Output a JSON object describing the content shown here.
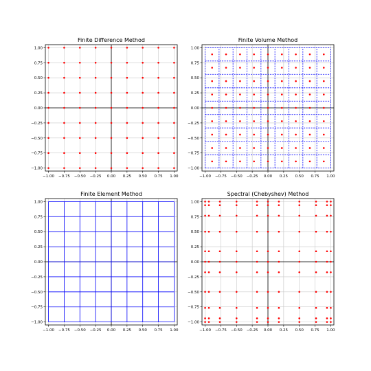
{
  "colors": {
    "point": "#ff0000",
    "mesh": "#0000ff",
    "grid": "#c8c8c8",
    "axis": "#000000",
    "frame": "#000000"
  },
  "chart_data": [
    {
      "type": "scatter",
      "title": "Finite Difference Method",
      "xlabel": "",
      "ylabel": "",
      "xlim": [
        -1.05,
        1.05
      ],
      "ylim": [
        -1.05,
        1.05
      ],
      "grid": true,
      "xticks": [
        -1.0,
        -0.75,
        -0.5,
        -0.25,
        0.0,
        0.25,
        0.5,
        0.75,
        1.0
      ],
      "yticks": [
        -1.0,
        -0.75,
        -0.5,
        -0.25,
        0.0,
        0.25,
        0.5,
        0.75,
        1.0
      ],
      "xtick_labels": [
        "−1.00",
        "−0.75",
        "−0.50",
        "−0.25",
        "0.00",
        "0.25",
        "0.50",
        "0.75",
        "1.00"
      ],
      "ytick_labels": [
        "−1.00",
        "−0.75",
        "−0.50",
        "−0.25",
        "0.00",
        "0.25",
        "0.50",
        "0.75",
        "1.00"
      ],
      "points_x": [
        -1.0,
        -0.75,
        -0.5,
        -0.25,
        0.0,
        0.25,
        0.5,
        0.75,
        1.0
      ],
      "points_y": [
        -1.0,
        -0.75,
        -0.5,
        -0.25,
        0.0,
        0.25,
        0.5,
        0.75,
        1.0
      ],
      "mesh_lines": []
    },
    {
      "type": "scatter",
      "title": "Finite Volume Method",
      "xlabel": "",
      "ylabel": "",
      "xlim": [
        -1.05,
        1.05
      ],
      "ylim": [
        -1.05,
        1.05
      ],
      "grid": true,
      "xticks": [
        -1.0,
        -0.75,
        -0.5,
        -0.25,
        0.0,
        0.25,
        0.5,
        0.75,
        1.0
      ],
      "yticks": [
        -1.0,
        -0.75,
        -0.5,
        -0.25,
        0.0,
        0.25,
        0.5,
        0.75,
        1.0
      ],
      "xtick_labels": [
        "−1.00",
        "−0.75",
        "−0.50",
        "−0.25",
        "0.00",
        "0.25",
        "0.50",
        "0.75",
        "1.00"
      ],
      "ytick_labels": [
        "−1.00",
        "−0.75",
        "−0.50",
        "−0.25",
        "0.00",
        "0.25",
        "0.50",
        "0.75",
        "1.00"
      ],
      "points_x": [
        -0.889,
        -0.667,
        -0.444,
        -0.222,
        0.0,
        0.222,
        0.444,
        0.667,
        0.889
      ],
      "points_y": [
        -0.889,
        -0.667,
        -0.444,
        -0.222,
        0.0,
        0.222,
        0.444,
        0.667,
        0.889
      ],
      "mesh_lines": [
        -1.0,
        -0.778,
        -0.556,
        -0.333,
        -0.111,
        0.111,
        0.333,
        0.556,
        0.778,
        1.0
      ],
      "mesh_style": "dashed"
    },
    {
      "type": "line",
      "title": "Finite Element Method",
      "xlabel": "",
      "ylabel": "",
      "xlim": [
        -1.05,
        1.05
      ],
      "ylim": [
        -1.05,
        1.05
      ],
      "grid": true,
      "xticks": [
        -1.0,
        -0.75,
        -0.5,
        -0.25,
        0.0,
        0.25,
        0.5,
        0.75,
        1.0
      ],
      "yticks": [
        -1.0,
        -0.75,
        -0.5,
        -0.25,
        0.0,
        0.25,
        0.5,
        0.75,
        1.0
      ],
      "xtick_labels": [
        "−1.00",
        "−0.75",
        "−0.50",
        "−0.25",
        "0.00",
        "0.25",
        "0.50",
        "0.75",
        "1.00"
      ],
      "ytick_labels": [
        "−1.00",
        "−0.75",
        "−0.50",
        "−0.25",
        "0.00",
        "0.25",
        "0.50",
        "0.75",
        "1.00"
      ],
      "points_x": [],
      "points_y": [],
      "mesh_lines": [
        -1.0,
        -0.75,
        -0.5,
        -0.25,
        0.0,
        0.25,
        0.5,
        0.75,
        1.0
      ],
      "mesh_style": "solid"
    },
    {
      "type": "scatter",
      "title": "Spectral (Chebyshev) Method",
      "xlabel": "",
      "ylabel": "",
      "xlim": [
        -1.05,
        1.05
      ],
      "ylim": [
        -1.05,
        1.05
      ],
      "grid": true,
      "xticks": [
        -1.0,
        -0.75,
        -0.5,
        -0.25,
        0.0,
        0.25,
        0.5,
        0.75,
        1.0
      ],
      "yticks": [
        -1.0,
        -0.75,
        -0.5,
        -0.25,
        0.0,
        0.25,
        0.5,
        0.75,
        1.0
      ],
      "xtick_labels": [
        "−1.00",
        "−0.75",
        "−0.50",
        "−0.25",
        "0.00",
        "0.25",
        "0.50",
        "0.75",
        "1.00"
      ],
      "ytick_labels": [
        "−1.00",
        "−0.75",
        "−0.50",
        "−0.25",
        "0.00",
        "0.25",
        "0.50",
        "0.75",
        "1.00"
      ],
      "points_x": [
        -1.0,
        -0.94,
        -0.766,
        -0.5,
        -0.174,
        0.0,
        0.174,
        0.5,
        0.766,
        0.94,
        1.0
      ],
      "points_y": [
        -1.0,
        -0.94,
        -0.766,
        -0.5,
        -0.174,
        0.0,
        0.174,
        0.5,
        0.766,
        0.94,
        1.0
      ],
      "mesh_lines": []
    }
  ]
}
